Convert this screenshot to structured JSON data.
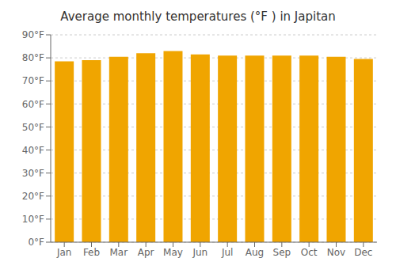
{
  "chart_data": {
    "type": "bar",
    "title": "Average monthly temperatures (°F ) in Japitan",
    "categories": [
      "Jan",
      "Feb",
      "Mar",
      "Apr",
      "May",
      "Jun",
      "Jul",
      "Aug",
      "Sep",
      "Oct",
      "Nov",
      "Dec"
    ],
    "values": [
      78.5,
      79.0,
      80.5,
      82.0,
      83.0,
      81.5,
      81.0,
      81.0,
      81.0,
      81.0,
      80.5,
      79.5
    ],
    "color": "#F0A500",
    "ylim": [
      0,
      90
    ],
    "yticks": [
      {
        "value": 0,
        "label": "0°F"
      },
      {
        "value": 10,
        "label": "10°F"
      },
      {
        "value": 20,
        "label": "20°F"
      },
      {
        "value": 30,
        "label": "30°F"
      },
      {
        "value": 40,
        "label": "40°F"
      },
      {
        "value": 50,
        "label": "50°F"
      },
      {
        "value": 60,
        "label": "60°F"
      },
      {
        "value": 70,
        "label": "70°F"
      },
      {
        "value": 80,
        "label": "80°F"
      },
      {
        "value": 90,
        "label": "90°F"
      }
    ],
    "grid": true
  }
}
